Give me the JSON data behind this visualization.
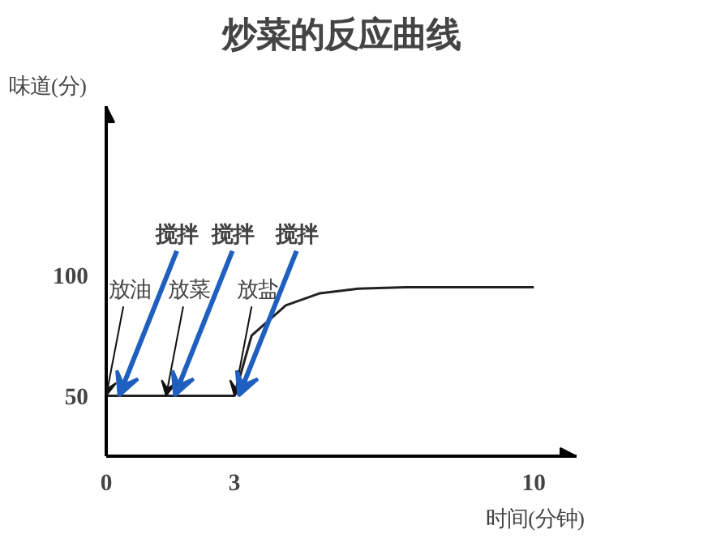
{
  "chart_data": {
    "type": "line",
    "title": "炒菜的反应曲线",
    "xlabel": "时间(分钟)",
    "ylabel": "味道(分)",
    "x": [
      0,
      3,
      3.4,
      4.2,
      5.0,
      5.9,
      7,
      10
    ],
    "series": [
      {
        "color": "#222222",
        "values": [
          50,
          50,
          75,
          87.5,
          92.5,
          94.4,
          95,
          95
        ]
      }
    ],
    "xlim": [
      0,
      11
    ],
    "ylim": [
      25,
      170
    ],
    "xticks": [
      0,
      3,
      10
    ],
    "yticks": [
      50,
      100
    ],
    "grid": false,
    "marker": "none",
    "line_style": "solid",
    "annotations": [
      {
        "text": "放油",
        "x": 0,
        "y": 50
      },
      {
        "text": "搅拌",
        "x": 0.3,
        "y": 50
      },
      {
        "text": "放菜",
        "x": 1.4,
        "y": 50
      },
      {
        "text": "搅拌",
        "x": 1.6,
        "y": 50
      },
      {
        "text": "放盐",
        "x": 3,
        "y": 50
      },
      {
        "text": "搅拌",
        "x": 3.1,
        "y": 50
      }
    ]
  }
}
